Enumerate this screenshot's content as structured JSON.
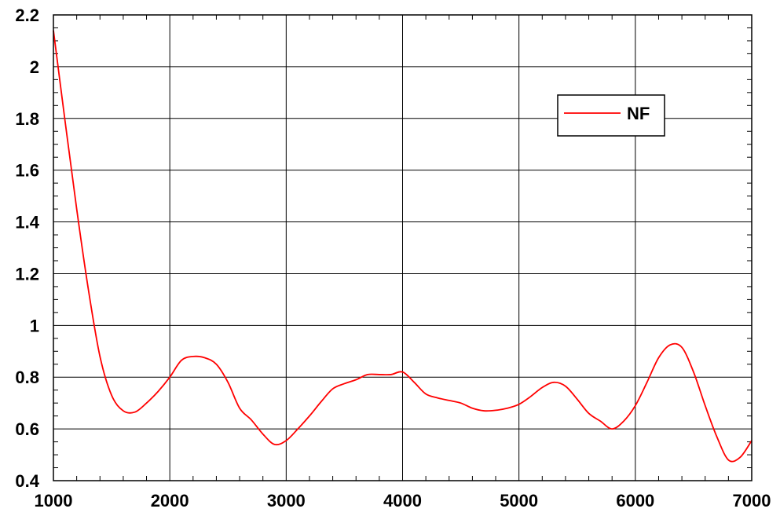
{
  "chart_data": {
    "type": "line",
    "title": "",
    "xlabel": "",
    "ylabel": "",
    "xlim": [
      1000,
      7000
    ],
    "ylim": [
      0.4,
      2.2
    ],
    "x_ticks": [
      1000,
      2000,
      3000,
      4000,
      5000,
      6000,
      7000
    ],
    "x_tick_labels": [
      "1000",
      "2000",
      "3000",
      "4000",
      "5000",
      "6000",
      "7000"
    ],
    "y_ticks": [
      0.4,
      0.6,
      0.8,
      1.0,
      1.2,
      1.4,
      1.6,
      1.8,
      2.0,
      2.2
    ],
    "y_tick_labels": [
      "0.4",
      "0.6",
      "0.8",
      "1",
      "1.2",
      "1.4",
      "1.6",
      "1.8",
      "2",
      "2.2"
    ],
    "grid": true,
    "legend_position": "top-right",
    "series": [
      {
        "name": "NF",
        "color": "#ff0000",
        "x": [
          1000,
          1100,
          1200,
          1300,
          1400,
          1500,
          1600,
          1700,
          1800,
          1900,
          2000,
          2100,
          2200,
          2300,
          2400,
          2500,
          2600,
          2700,
          2800,
          2900,
          3000,
          3100,
          3200,
          3300,
          3400,
          3500,
          3600,
          3700,
          3800,
          3900,
          4000,
          4100,
          4200,
          4300,
          4400,
          4500,
          4600,
          4700,
          4800,
          4900,
          5000,
          5100,
          5200,
          5300,
          5400,
          5500,
          5600,
          5700,
          5800,
          5900,
          6000,
          6100,
          6200,
          6300,
          6400,
          6500,
          6600,
          6700,
          6800,
          6900,
          7000
        ],
        "values": [
          2.14,
          1.79,
          1.45,
          1.14,
          0.88,
          0.73,
          0.67,
          0.665,
          0.7,
          0.745,
          0.8,
          0.865,
          0.88,
          0.875,
          0.85,
          0.78,
          0.68,
          0.635,
          0.58,
          0.54,
          0.555,
          0.6,
          0.65,
          0.705,
          0.755,
          0.775,
          0.79,
          0.81,
          0.81,
          0.81,
          0.82,
          0.78,
          0.735,
          0.72,
          0.71,
          0.7,
          0.68,
          0.67,
          0.672,
          0.68,
          0.695,
          0.725,
          0.76,
          0.78,
          0.765,
          0.715,
          0.66,
          0.63,
          0.6,
          0.63,
          0.69,
          0.78,
          0.875,
          0.925,
          0.915,
          0.82,
          0.69,
          0.57,
          0.48,
          0.49,
          0.555
        ]
      }
    ]
  }
}
